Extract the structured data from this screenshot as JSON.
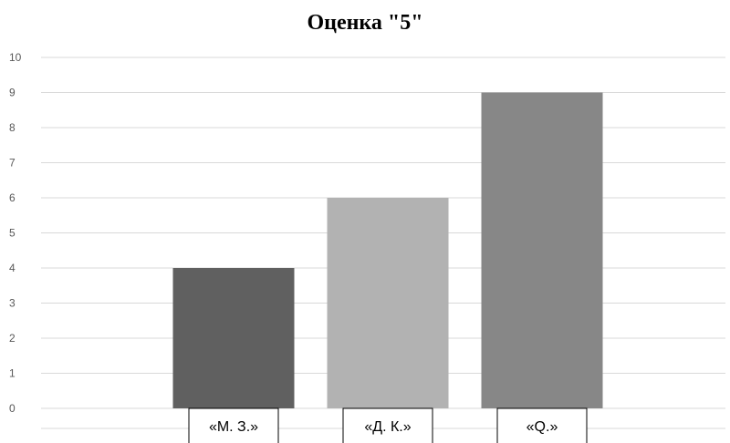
{
  "chart_data": {
    "type": "bar",
    "title": "Оценка \"5\"",
    "xlabel": "",
    "ylabel": "",
    "categories": [
      "«М. З.»",
      "«Д. К.»",
      "«Q.»"
    ],
    "values": [
      4,
      6,
      9
    ],
    "bar_colors": [
      "#606060",
      "#b2b2b2",
      "#878787"
    ],
    "yticks": [
      0,
      1,
      2,
      3,
      4,
      5,
      6,
      7,
      8,
      9,
      10
    ],
    "ylim": [
      0,
      10
    ],
    "grid": true,
    "legend": "none"
  },
  "colors": {
    "gridline": "#d9d9d9",
    "tick_text": "#595959",
    "label_border": "#000000"
  }
}
